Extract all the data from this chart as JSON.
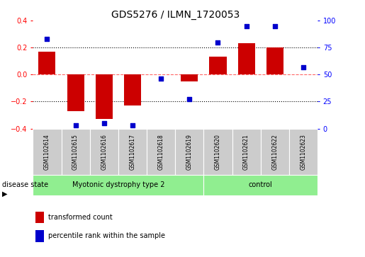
{
  "title": "GDS5276 / ILMN_1720053",
  "samples": [
    "GSM1102614",
    "GSM1102615",
    "GSM1102616",
    "GSM1102617",
    "GSM1102618",
    "GSM1102619",
    "GSM1102620",
    "GSM1102621",
    "GSM1102622",
    "GSM1102623"
  ],
  "transformed_count": [
    0.17,
    -0.27,
    -0.33,
    -0.23,
    0.0,
    -0.05,
    0.13,
    0.23,
    0.2,
    0.0
  ],
  "percentile_rank": [
    83,
    3,
    5,
    3,
    46,
    27,
    80,
    95,
    95,
    57
  ],
  "ylim_left": [
    -0.4,
    0.4
  ],
  "ylim_right": [
    0,
    100
  ],
  "yticks_left": [
    -0.4,
    -0.2,
    0.0,
    0.2,
    0.4
  ],
  "yticks_right": [
    0,
    25,
    50,
    75,
    100
  ],
  "disease_groups": [
    {
      "label": "Myotonic dystrophy type 2",
      "start": 0,
      "end": 6,
      "color": "#90EE90"
    },
    {
      "label": "control",
      "start": 6,
      "end": 10,
      "color": "#90EE90"
    }
  ],
  "bar_color": "#CC0000",
  "scatter_color": "#0000CC",
  "zero_line_color": "#FF6666",
  "grid_color": "#555555",
  "bg_color": "#FFFFFF",
  "label_red": "transformed count",
  "label_blue": "percentile rank within the sample",
  "disease_state_label": "disease state",
  "sample_box_color": "#CCCCCC",
  "title_fontsize": 10,
  "tick_fontsize": 7,
  "sample_fontsize": 5.5,
  "disease_fontsize": 7,
  "legend_fontsize": 7
}
